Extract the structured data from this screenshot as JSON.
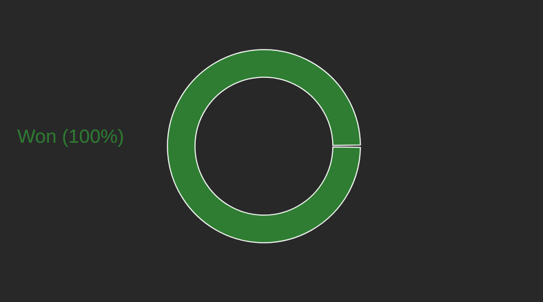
{
  "chart_data": {
    "type": "pie",
    "title": "",
    "legend_position": "left",
    "slices": [
      {
        "label": "Won",
        "percent_label": "Won (100%)",
        "value": 100,
        "color": "#2e7d32"
      }
    ]
  },
  "colors": {
    "background": "#282828",
    "slice_stroke": "#ffffff"
  }
}
